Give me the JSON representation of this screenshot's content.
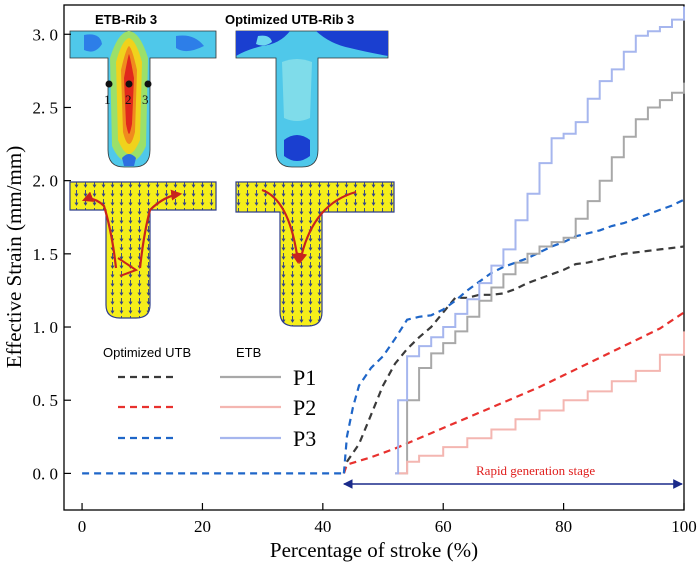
{
  "chart_data": {
    "type": "line",
    "xlabel": "Percentage of stroke (%)",
    "ylabel": "Effective Strain (mm/mm)",
    "xlim": [
      -3,
      100
    ],
    "ylim": [
      -0.25,
      3.2
    ],
    "xticks": [
      "0",
      "20",
      "40",
      "60",
      "80",
      "100"
    ],
    "yticks": [
      "0. 0",
      "0. 5",
      "1. 0",
      "1. 5",
      "2. 0",
      "2. 5",
      "3. 0"
    ],
    "legend": {
      "header_left": "Optimized UTB",
      "header_right": "ETB",
      "labels": [
        "P1",
        "P2",
        "P3"
      ]
    },
    "annotation": "Rapid generation stage",
    "annotation_range": [
      43.5,
      100
    ],
    "insets": {
      "left_title": "ETB-Rib 3",
      "right_title": "Optimized UTB-Rib 3",
      "point_labels": [
        "1",
        "2",
        "3"
      ]
    },
    "series": [
      {
        "group": "Optimized UTB",
        "point": "P1",
        "style": "dashed",
        "color": "#3a3a3a",
        "x": [
          43.5,
          44,
          46,
          48,
          50,
          52,
          54,
          56,
          58,
          60,
          62,
          64,
          66,
          68,
          70,
          72,
          74,
          76,
          78,
          80,
          82,
          84,
          86,
          88,
          90,
          92,
          94,
          96,
          98,
          100
        ],
        "y": [
          0.0,
          0.08,
          0.2,
          0.4,
          0.6,
          0.75,
          0.85,
          0.93,
          1.0,
          1.1,
          1.2,
          1.2,
          1.22,
          1.22,
          1.23,
          1.26,
          1.3,
          1.33,
          1.36,
          1.39,
          1.43,
          1.44,
          1.46,
          1.48,
          1.5,
          1.51,
          1.52,
          1.53,
          1.54,
          1.55
        ]
      },
      {
        "group": "Optimized UTB",
        "point": "P2",
        "style": "dashed",
        "color": "#e8312e",
        "x": [
          43.5,
          44,
          48,
          52,
          56,
          60,
          64,
          68,
          72,
          76,
          80,
          84,
          88,
          92,
          96,
          100
        ],
        "y": [
          0.0,
          0.06,
          0.11,
          0.17,
          0.24,
          0.31,
          0.38,
          0.45,
          0.52,
          0.59,
          0.67,
          0.75,
          0.83,
          0.91,
          0.99,
          1.1
        ]
      },
      {
        "group": "Optimized UTB",
        "point": "P3",
        "style": "dashed",
        "color": "#1f66c8",
        "x": [
          43.5,
          44,
          45,
          46,
          48,
          50,
          52,
          54,
          56,
          58,
          60,
          62,
          64,
          66,
          68,
          70,
          72,
          74,
          76,
          78,
          80,
          82,
          84,
          86,
          88,
          90,
          92,
          94,
          96,
          98,
          100
        ],
        "y": [
          0.0,
          0.25,
          0.45,
          0.6,
          0.72,
          0.8,
          0.92,
          1.05,
          1.07,
          1.08,
          1.12,
          1.18,
          1.25,
          1.31,
          1.37,
          1.41,
          1.44,
          1.47,
          1.51,
          1.55,
          1.58,
          1.62,
          1.64,
          1.66,
          1.69,
          1.71,
          1.74,
          1.77,
          1.8,
          1.83,
          1.87
        ]
      },
      {
        "group": "ETB",
        "point": "P1",
        "style": "solid",
        "color": "#a8a8a8",
        "x": [
          52,
          54,
          56,
          58,
          60,
          62,
          64,
          66,
          68,
          70,
          72,
          74,
          76,
          78,
          80,
          82,
          84,
          86,
          88,
          90,
          92,
          94,
          96,
          98,
          100
        ],
        "y": [
          0.0,
          0.5,
          0.72,
          0.82,
          0.89,
          0.97,
          1.07,
          1.18,
          1.27,
          1.36,
          1.44,
          1.5,
          1.55,
          1.58,
          1.61,
          1.74,
          1.86,
          2.0,
          2.16,
          2.3,
          2.42,
          2.5,
          2.55,
          2.6,
          2.67
        ]
      },
      {
        "group": "ETB",
        "point": "P2",
        "style": "solid",
        "color": "#f4b6b1",
        "x": [
          52,
          54,
          56,
          60,
          64,
          68,
          72,
          76,
          80,
          84,
          88,
          92,
          96,
          100
        ],
        "y": [
          0.0,
          0.08,
          0.12,
          0.18,
          0.24,
          0.3,
          0.37,
          0.43,
          0.5,
          0.56,
          0.63,
          0.7,
          0.81,
          0.97
        ]
      },
      {
        "group": "ETB",
        "point": "P3",
        "style": "solid",
        "color": "#a6b6ee",
        "x": [
          52,
          52.5,
          54,
          56,
          58,
          60,
          62,
          64,
          66,
          68,
          70,
          72,
          74,
          76,
          78,
          80,
          82,
          84,
          86,
          88,
          90,
          92,
          94,
          96,
          98,
          100
        ],
        "y": [
          0.0,
          0.5,
          0.8,
          0.87,
          0.93,
          1.0,
          1.09,
          1.19,
          1.3,
          1.42,
          1.53,
          1.73,
          1.91,
          2.12,
          2.29,
          2.32,
          2.4,
          2.56,
          2.68,
          2.76,
          2.88,
          2.99,
          3.02,
          3.05,
          3.1,
          3.19
        ]
      },
      {
        "group": "shared",
        "point": "baseline",
        "style": "dashed",
        "color": "#1f66c8",
        "x": [
          0,
          43.5
        ],
        "y": [
          0.0,
          0.0
        ]
      }
    ],
    "colors": {
      "axis": "#000000",
      "annotation": "#e0201f",
      "arrow": "#1a2a8a"
    }
  }
}
